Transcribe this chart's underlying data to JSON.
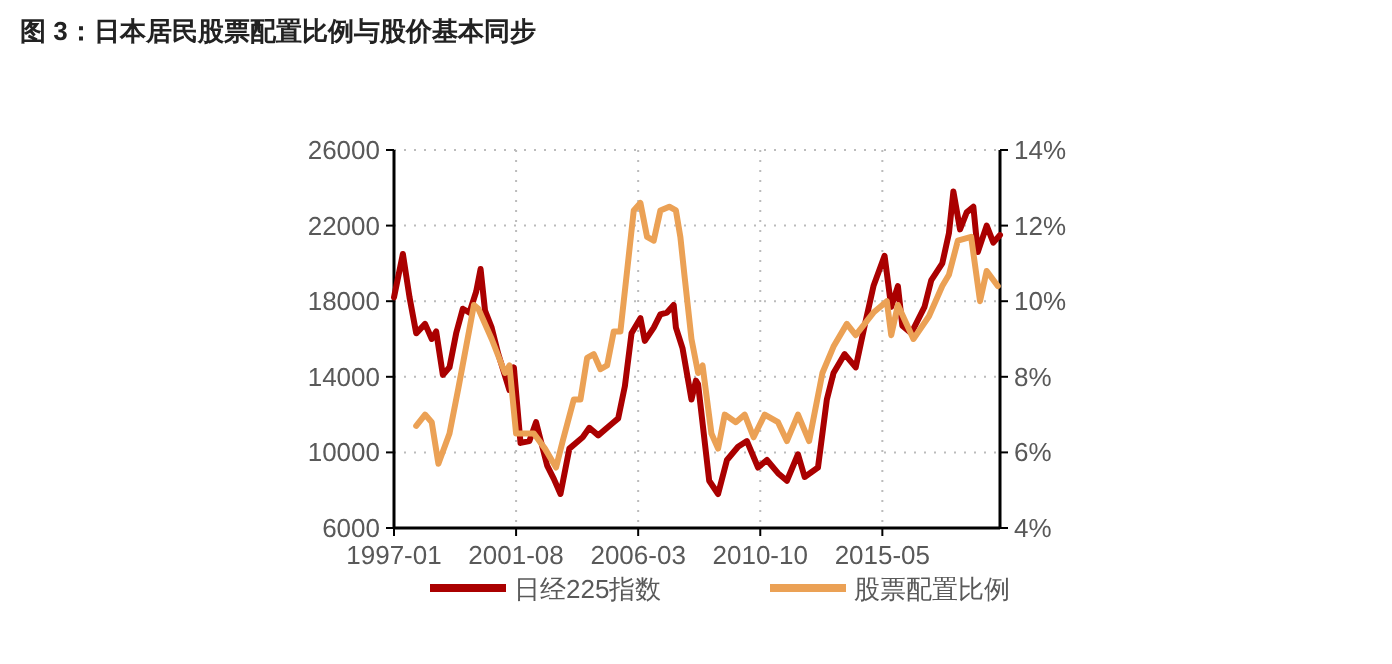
{
  "chart_data": {
    "type": "line",
    "title": "图 3：日本居民股票配置比例与股价基本同步",
    "xlim": [
      "1997-01",
      "2019-10"
    ],
    "xticks": [
      {
        "value": "1997-01",
        "label": "1997-01"
      },
      {
        "value": "2001-08",
        "label": "2001-08"
      },
      {
        "value": "2006-03",
        "label": "2006-03"
      },
      {
        "value": "2010-10",
        "label": "2010-10"
      },
      {
        "value": "2015-05",
        "label": "2015-05"
      }
    ],
    "ylim": [
      6000,
      26000
    ],
    "yticks": [
      6000,
      10000,
      14000,
      18000,
      22000,
      26000
    ],
    "y2lim": [
      4,
      14
    ],
    "y2ticks": [
      {
        "value": 4,
        "label": "4%"
      },
      {
        "value": 6,
        "label": "6%"
      },
      {
        "value": 8,
        "label": "8%"
      },
      {
        "value": 10,
        "label": "10%"
      },
      {
        "value": 12,
        "label": "12%"
      },
      {
        "value": 14,
        "label": "14%"
      }
    ],
    "grid": true,
    "legend": "bottom",
    "series": [
      {
        "name": "日经225指数",
        "color": "#aa0000",
        "x": [
          "1997-01",
          "1997-05",
          "1997-08",
          "1997-11",
          "1998-03",
          "1998-06",
          "1998-08",
          "1998-11",
          "1999-02",
          "1999-05",
          "1999-08",
          "1999-11",
          "2000-02",
          "2000-04",
          "2000-06",
          "2000-09",
          "2000-12",
          "2001-05",
          "2001-07",
          "2001-10",
          "2002-02",
          "2002-05",
          "2002-10",
          "2003-01",
          "2003-04",
          "2003-08",
          "2004-02",
          "2004-05",
          "2004-09",
          "2005-03",
          "2005-06",
          "2005-09",
          "2005-12",
          "2006-04",
          "2006-06",
          "2006-10",
          "2007-01",
          "2007-04",
          "2007-07",
          "2007-08",
          "2007-11",
          "2008-03",
          "2008-05",
          "2008-06",
          "2008-11",
          "2009-03",
          "2009-07",
          "2009-12",
          "2010-04",
          "2010-09",
          "2011-01",
          "2011-06",
          "2011-10",
          "2012-03",
          "2012-06",
          "2012-12",
          "2013-04",
          "2013-07",
          "2013-12",
          "2014-05",
          "2014-09",
          "2015-01",
          "2015-06",
          "2015-09",
          "2015-12",
          "2016-02",
          "2016-06",
          "2016-12",
          "2017-03",
          "2017-08",
          "2017-11",
          "2018-01",
          "2018-04",
          "2018-07",
          "2018-10",
          "2018-12",
          "2019-04",
          "2019-07",
          "2019-10"
        ],
        "values": [
          18200,
          20500,
          18200,
          16300,
          16800,
          16000,
          16400,
          14100,
          14500,
          16300,
          17600,
          17400,
          18500,
          19700,
          17500,
          16600,
          15200,
          13300,
          14500,
          10500,
          10600,
          11600,
          9300,
          8600,
          7800,
          10200,
          10800,
          11300,
          10900,
          11500,
          11800,
          13500,
          16300,
          17100,
          15900,
          16600,
          17300,
          17400,
          17800,
          16600,
          15500,
          12800,
          13800,
          13600,
          8500,
          7800,
          9600,
          10300,
          10600,
          9200,
          9600,
          8900,
          8500,
          9900,
          8700,
          9200,
          12800,
          14200,
          15200,
          14500,
          16700,
          18800,
          20400,
          17700,
          18800,
          16700,
          16300,
          17700,
          19100,
          20000,
          21600,
          23800,
          21800,
          22700,
          23000,
          20600,
          22000,
          21100,
          21500
        ]
      },
      {
        "name": "股票配置比例",
        "color": "#eba155",
        "axis": "y2",
        "x": [
          "1997-11",
          "1998-03",
          "1998-06",
          "1998-09",
          "1999-02",
          "1999-06",
          "2000-01",
          "2000-03",
          "2000-09",
          "2001-03",
          "2001-05",
          "2001-08",
          "2002-04",
          "2002-09",
          "2003-02",
          "2003-05",
          "2003-10",
          "2004-01",
          "2004-04",
          "2004-07",
          "2004-10",
          "2005-01",
          "2005-04",
          "2005-07",
          "2005-10",
          "2006-01",
          "2006-04",
          "2006-07",
          "2006-10",
          "2007-01",
          "2007-05",
          "2007-08",
          "2007-10",
          "2007-12",
          "2008-03",
          "2008-06",
          "2008-08",
          "2008-12",
          "2009-03",
          "2009-06",
          "2009-11",
          "2010-03",
          "2010-07",
          "2010-12",
          "2011-06",
          "2011-10",
          "2012-03",
          "2012-08",
          "2013-02",
          "2013-07",
          "2014-01",
          "2014-05",
          "2015-01",
          "2015-07",
          "2015-09",
          "2015-12",
          "2016-07",
          "2017-02",
          "2017-08",
          "2017-11",
          "2018-03",
          "2018-09",
          "2019-01",
          "2019-04",
          "2019-09"
        ],
        "values": [
          6.7,
          7.0,
          6.8,
          5.7,
          6.5,
          7.7,
          9.9,
          9.8,
          9.0,
          8.1,
          8.3,
          6.5,
          6.5,
          6.1,
          5.6,
          6.3,
          7.4,
          7.4,
          8.5,
          8.6,
          8.2,
          8.3,
          9.2,
          9.2,
          10.8,
          12.4,
          12.6,
          11.7,
          11.6,
          12.4,
          12.5,
          12.4,
          11.7,
          10.6,
          9.0,
          8.1,
          8.3,
          6.5,
          6.1,
          7.0,
          6.8,
          7.0,
          6.4,
          7.0,
          6.8,
          6.3,
          7.0,
          6.3,
          8.1,
          8.8,
          9.4,
          9.1,
          9.7,
          10.0,
          9.1,
          9.9,
          9.0,
          9.6,
          10.4,
          10.7,
          11.6,
          11.7,
          10.0,
          10.8,
          10.4
        ]
      }
    ]
  }
}
